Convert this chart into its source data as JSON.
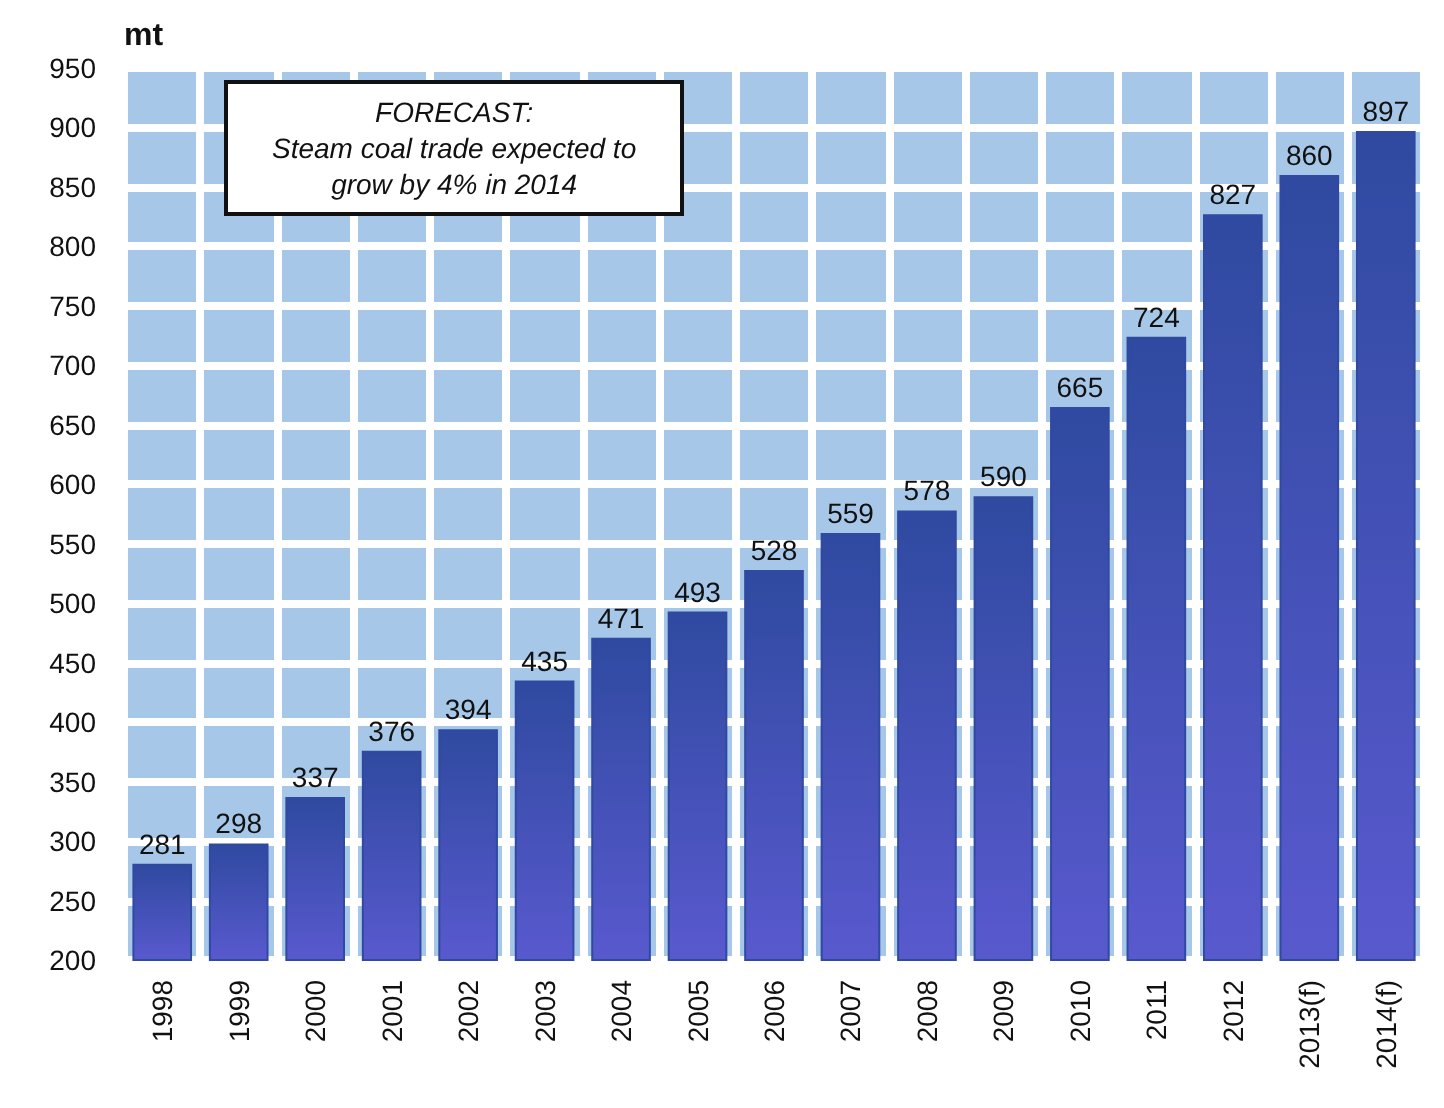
{
  "chart_data": {
    "type": "bar",
    "ylabel": "mt",
    "categories": [
      "1998",
      "1999",
      "2000",
      "2001",
      "2002",
      "2003",
      "2004",
      "2005",
      "2006",
      "2007",
      "2008",
      "2009",
      "2010",
      "2011",
      "2012",
      "2013(f)",
      "2014(f)"
    ],
    "values": [
      281,
      298,
      337,
      376,
      394,
      435,
      471,
      493,
      528,
      559,
      578,
      590,
      665,
      724,
      827,
      860,
      897
    ],
    "color": "#2f4aa0",
    "ylim": [
      200,
      950
    ],
    "yticks": [
      200,
      250,
      300,
      350,
      400,
      450,
      500,
      550,
      600,
      650,
      700,
      750,
      800,
      850,
      900,
      950
    ],
    "grid": true,
    "data_labels": true,
    "annotations": [
      "FORECAST:\nSteam coal trade expected to\ngrow by 4% in 2014"
    ]
  }
}
